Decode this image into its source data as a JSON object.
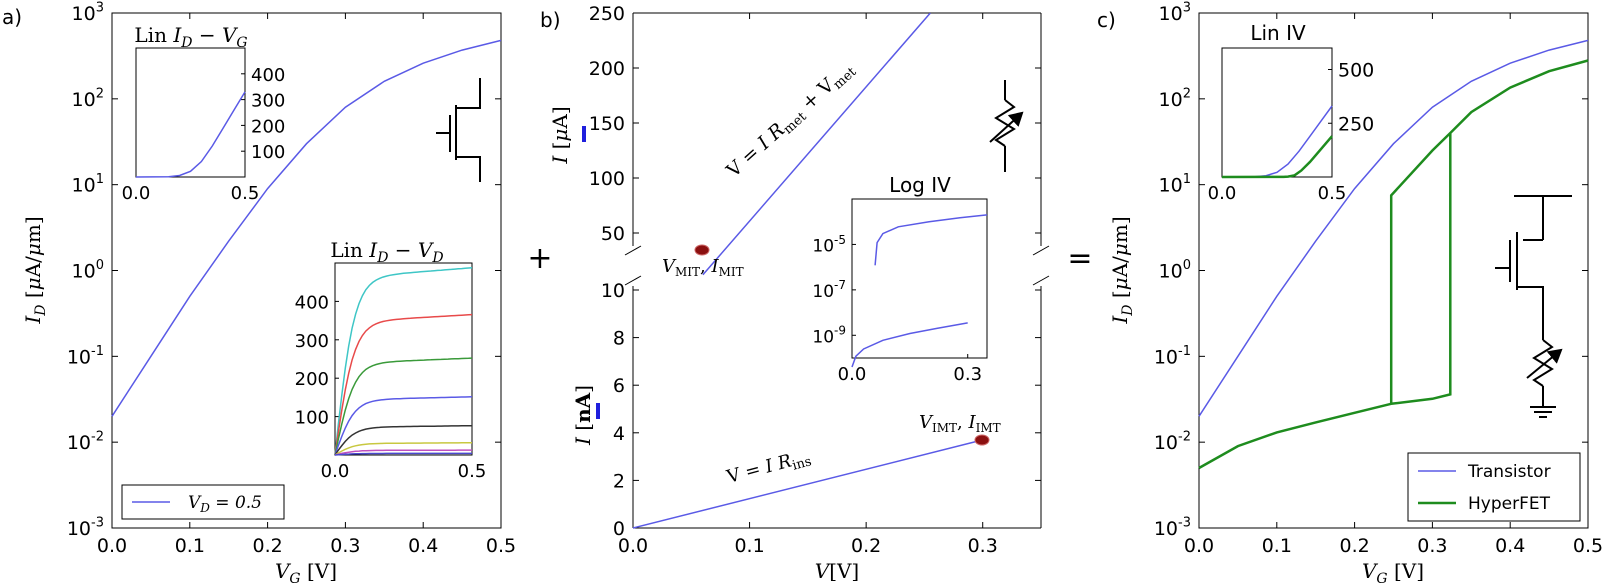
{
  "chart_data": [
    {
      "id": "a",
      "panel_label": "a)",
      "type": "line",
      "ylog": true,
      "xlim": [
        0,
        0.5
      ],
      "ylim": [
        0.001,
        1000
      ],
      "xticks": [
        "0.0",
        "0.1",
        "0.2",
        "0.3",
        "0.4",
        "0.5"
      ],
      "yticks": [
        {
          "base": "10",
          "exp": "3"
        },
        {
          "base": "10",
          "exp": "2"
        },
        {
          "base": "10",
          "exp": "1"
        },
        {
          "base": "10",
          "exp": "0"
        },
        {
          "base": "10",
          "exp": "-1"
        },
        {
          "base": "10",
          "exp": "-2"
        },
        {
          "base": "10",
          "exp": "-3"
        }
      ],
      "xlabel": "V_G [V]",
      "ylabel": "I_D [μA/μm]",
      "legend": {
        "label": "V_D = 0.5",
        "placement": "lower-left"
      },
      "series": [
        {
          "color": "#5a5ae6",
          "x": [
            0,
            0.05,
            0.1,
            0.15,
            0.2,
            0.25,
            0.3,
            0.35,
            0.4,
            0.45,
            0.5
          ],
          "y": [
            0.02,
            0.1,
            0.5,
            2.2,
            9,
            30,
            80,
            160,
            260,
            370,
            480
          ]
        }
      ],
      "insets": [
        {
          "title": "Lin I_D − V_G",
          "xlim": [
            0,
            0.5
          ],
          "ylim": [
            0,
            500
          ],
          "xticks": [
            "0.0",
            "0.5"
          ],
          "yticks": [
            "100",
            "200",
            "300",
            "400"
          ],
          "series": [
            {
              "color": "#5a5ae6",
              "x": [
                0,
                0.15,
                0.2,
                0.25,
                0.3,
                0.35,
                0.4,
                0.45,
                0.5
              ],
              "y": [
                0,
                1,
                6,
                22,
                60,
                120,
                190,
                260,
                330
              ]
            }
          ]
        },
        {
          "title": "Lin I_D − V_D",
          "xlim": [
            0,
            0.5
          ],
          "ylim": [
            0,
            500
          ],
          "xticks": [
            "0.0",
            "0.5"
          ],
          "yticks": [
            "100",
            "200",
            "300",
            "400"
          ],
          "series": [
            {
              "color": "#3ec6c6",
              "sat": 460
            },
            {
              "color": "#e84a4a",
              "sat": 345
            },
            {
              "color": "#3a9a3a",
              "sat": 238
            },
            {
              "color": "#5a5ae6",
              "sat": 143
            },
            {
              "color": "#333333",
              "sat": 72
            },
            {
              "color": "#c8c840",
              "sat": 30
            },
            {
              "color": "#c050c0",
              "sat": 12
            },
            {
              "color": "#4a4ad0",
              "sat": 4
            }
          ]
        }
      ]
    },
    {
      "id": "b",
      "panel_label": "b)",
      "type": "line",
      "xlim": [
        0,
        0.35
      ],
      "xticks": [
        "0.0",
        "0.1",
        "0.2",
        "0.3"
      ],
      "xlabel": "V[V]",
      "top": {
        "ylim": [
          0,
          250
        ],
        "yticks": [
          "50",
          "100",
          "150",
          "200",
          "250"
        ],
        "ylabel": "I [μA]",
        "series": [
          {
            "color": "#5a5ae6",
            "x": [
              0.06,
              0.255
            ],
            "y": [
              12,
              250
            ]
          }
        ],
        "annotation": "V = I R_met + V_met",
        "point": {
          "x": 0.06,
          "y": 12,
          "label": "V_MIT, I_MIT"
        }
      },
      "bottom": {
        "ylim": [
          0,
          10
        ],
        "yticks": [
          "0",
          "2",
          "4",
          "6",
          "8",
          "10"
        ],
        "ylabel": "I [nA]",
        "series": [
          {
            "color": "#5a5ae6",
            "x": [
              0,
              0.3
            ],
            "y": [
              0,
              3.7
            ]
          }
        ],
        "annotation": "V = I R_ins",
        "point": {
          "x": 0.3,
          "y": 3.7,
          "label": "V_IMT, I_IMT"
        }
      },
      "inset": {
        "title": "Log IV",
        "xlim": [
          0,
          0.35
        ],
        "ylog": true,
        "ylim": [
          1e-10,
          0.001
        ],
        "xticks": [
          "0.0",
          "0.3"
        ],
        "yticks": [
          {
            "base": "10",
            "exp": "-5"
          },
          {
            "base": "10",
            "exp": "-7"
          },
          {
            "base": "10",
            "exp": "-9"
          }
        ],
        "series": [
          {
            "color": "#5a5ae6",
            "x": [
              0.06,
              0.065,
              0.08,
              0.12,
              0.2,
              0.28,
              0.35
            ],
            "y": [
              1.2e-06,
              1.2e-05,
              3e-05,
              6e-05,
              0.0001,
              0.00015,
              0.0002
            ]
          },
          {
            "color": "#5a5ae6",
            "x": [
              0,
              0.01,
              0.03,
              0.08,
              0.15,
              0.22,
              0.3
            ],
            "y": [
              4e-11,
              1.2e-10,
              2.5e-10,
              6e-10,
              1.2e-09,
              2e-09,
              3.5e-09
            ]
          }
        ]
      }
    },
    {
      "id": "c",
      "panel_label": "c)",
      "type": "line",
      "ylog": true,
      "xlim": [
        0,
        0.5
      ],
      "ylim": [
        0.001,
        1000
      ],
      "xticks": [
        "0.0",
        "0.1",
        "0.2",
        "0.3",
        "0.4",
        "0.5"
      ],
      "yticks": [
        {
          "base": "10",
          "exp": "3"
        },
        {
          "base": "10",
          "exp": "2"
        },
        {
          "base": "10",
          "exp": "1"
        },
        {
          "base": "10",
          "exp": "0"
        },
        {
          "base": "10",
          "exp": "-1"
        },
        {
          "base": "10",
          "exp": "-2"
        },
        {
          "base": "10",
          "exp": "-3"
        }
      ],
      "xlabel": "V_G [V]",
      "ylabel": "I_D [μA/μm]",
      "legend": {
        "placement": "lower-right"
      },
      "series": [
        {
          "name": "Transistor",
          "color": "#5a5ae6",
          "x": [
            0,
            0.05,
            0.1,
            0.15,
            0.2,
            0.25,
            0.3,
            0.35,
            0.4,
            0.45,
            0.5
          ],
          "y": [
            0.02,
            0.1,
            0.5,
            2.2,
            9,
            30,
            80,
            160,
            260,
            370,
            480
          ]
        },
        {
          "name": "HyperFET",
          "color": "#1e8c1e",
          "x": [
            0,
            0.05,
            0.1,
            0.15,
            0.2,
            0.247,
            0.247,
            0.3,
            0.323,
            0.323,
            0.35,
            0.4,
            0.45,
            0.5,
            0.5,
            0.45,
            0.4,
            0.35,
            0.323,
            0.323,
            0.3,
            0.247
          ],
          "y": [
            0.005,
            0.009,
            0.013,
            0.017,
            0.022,
            0.028,
            7.5,
            25,
            40,
            40,
            70,
            135,
            210,
            280,
            280,
            210,
            135,
            70,
            40,
            0.036,
            0.032,
            0.028
          ]
        }
      ],
      "inset": {
        "title": "Lin IV",
        "xlim": [
          0,
          0.5
        ],
        "ylim": [
          0,
          600
        ],
        "xticks": [
          "0.0",
          "0.5"
        ],
        "yticks": [
          "250",
          "500"
        ],
        "series": [
          {
            "color": "#5a5ae6",
            "x": [
              0,
              0.15,
              0.2,
              0.25,
              0.3,
              0.35,
              0.4,
              0.45,
              0.5
            ],
            "y": [
              0,
              1,
              6,
              22,
              60,
              120,
              190,
              260,
              330
            ]
          },
          {
            "color": "#1e8c1e",
            "x": [
              0,
              0.28,
              0.3,
              0.33,
              0.36,
              0.4,
              0.45,
              0.5
            ],
            "y": [
              0,
              0.5,
              2,
              8,
              30,
              70,
              130,
              190
            ]
          },
          {
            "color": "#1e8c1e",
            "x": [
              0.31,
              0.31
            ],
            "y": [
              0,
              6
            ]
          }
        ]
      }
    }
  ],
  "operators": {
    "plus": "+",
    "equals": "="
  }
}
